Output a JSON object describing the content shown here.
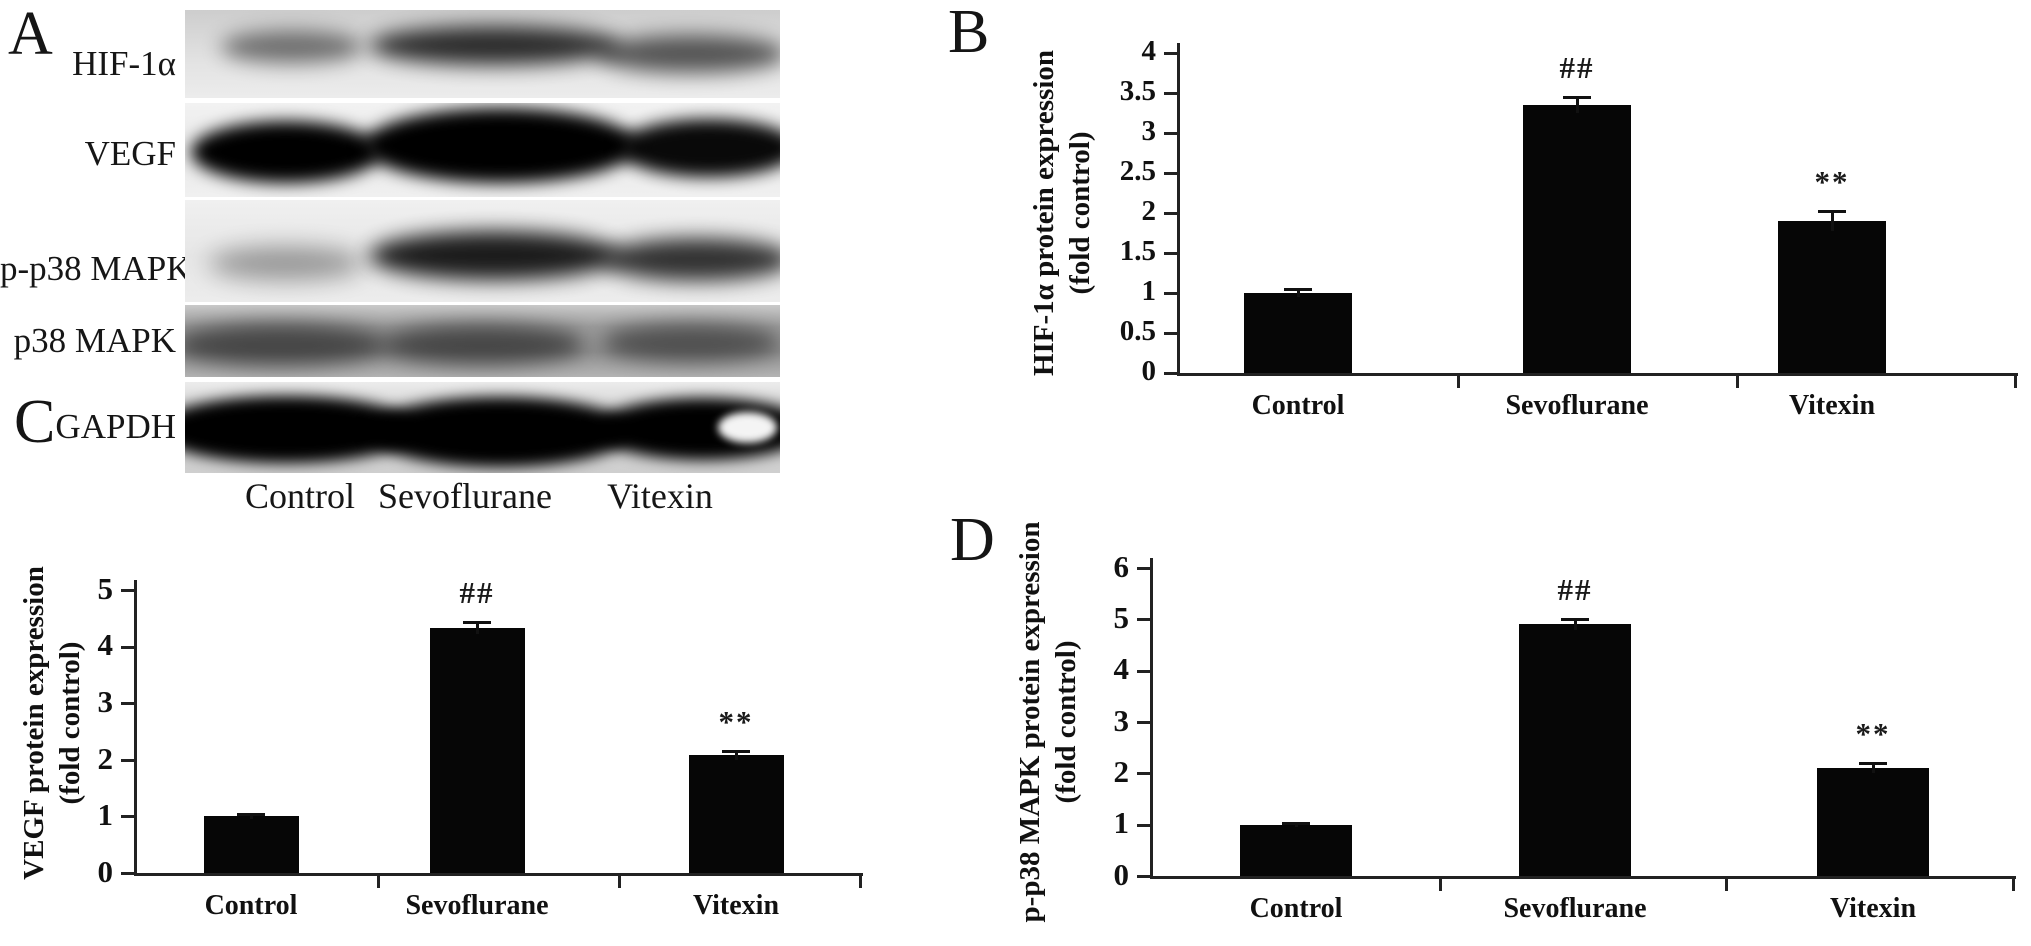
{
  "panels": {
    "A": {
      "letter": "A",
      "row_labels": [
        "HIF-1α",
        "VEGF",
        "p-p38 MAPK",
        "p38 MAPK",
        "GAPDH"
      ],
      "lane_labels": [
        "Control",
        "Sevoflurane",
        "Vitexin"
      ],
      "rows": [
        {
          "label": "HIF-1α",
          "band_intensities": [
            0.5,
            0.8,
            0.62
          ]
        },
        {
          "label": "VEGF",
          "band_intensities": [
            1.0,
            1.0,
            0.96
          ]
        },
        {
          "label": "p-p38 MAPK",
          "band_intensities": [
            0.35,
            0.88,
            0.78
          ]
        },
        {
          "label": "p38 MAPK",
          "band_intensities": [
            0.52,
            0.52,
            0.46
          ]
        },
        {
          "label": "GAPDH",
          "band_intensities": [
            1.0,
            1.0,
            1.0
          ]
        }
      ]
    },
    "B": {
      "letter": "B"
    },
    "C": {
      "letter": "C"
    },
    "D": {
      "letter": "D"
    }
  },
  "chart_data": [
    {
      "id": "B",
      "type": "bar",
      "categories": [
        "Control",
        "Sevoflurane",
        "Vitexin"
      ],
      "values": [
        1.0,
        3.35,
        1.9
      ],
      "errors": [
        0.05,
        0.1,
        0.12
      ],
      "annotations": [
        "",
        "##",
        "**"
      ],
      "ylabel_line1": "HIF-1α protein expression",
      "ylabel_line2": "(fold control)",
      "xlabel": "",
      "ylim": [
        0,
        4
      ],
      "yticks": [
        0,
        0.5,
        1,
        1.5,
        2,
        2.5,
        3,
        3.5,
        4
      ],
      "grid": false,
      "legend": "none",
      "bar_color": "#060606"
    },
    {
      "id": "C",
      "type": "bar",
      "categories": [
        "Control",
        "Sevoflurane",
        "Vitexin"
      ],
      "values": [
        1.0,
        4.33,
        2.08
      ],
      "errors": [
        0.05,
        0.1,
        0.08
      ],
      "annotations": [
        "",
        "##",
        "**"
      ],
      "ylabel_line1": "VEGF protein expression",
      "ylabel_line2": "(fold control)",
      "xlabel": "",
      "ylim": [
        0,
        5
      ],
      "yticks": [
        0,
        1,
        2,
        3,
        4,
        5
      ],
      "grid": false,
      "legend": "none",
      "bar_color": "#060606"
    },
    {
      "id": "D",
      "type": "bar",
      "categories": [
        "Control",
        "Sevoflurane",
        "Vitexin"
      ],
      "values": [
        1.0,
        4.9,
        2.1
      ],
      "errors": [
        0.04,
        0.1,
        0.1
      ],
      "annotations": [
        "",
        "##",
        "**"
      ],
      "ylabel_line1": "p-p38 MAPK protein expression",
      "ylabel_line2": "(fold control)",
      "xlabel": "",
      "ylim": [
        0,
        6
      ],
      "yticks": [
        0,
        1,
        2,
        3,
        4,
        5,
        6
      ],
      "grid": false,
      "legend": "none",
      "bar_color": "#060606"
    }
  ]
}
